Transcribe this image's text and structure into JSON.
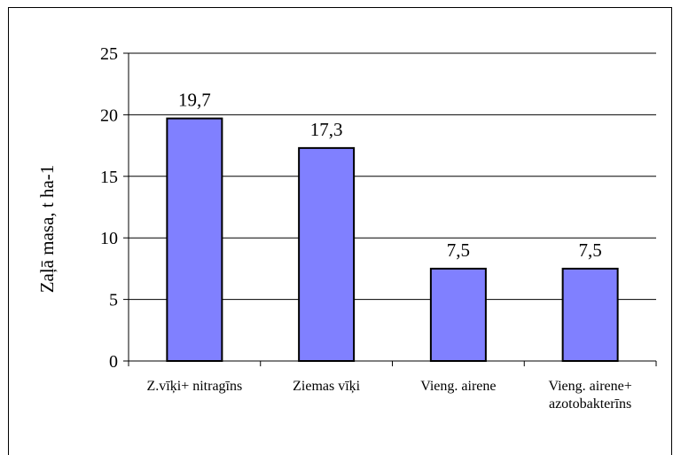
{
  "chart_data": {
    "type": "bar",
    "title": "",
    "xlabel": "",
    "ylabel": "Zaļā masa, t ha-1",
    "ylim": [
      0,
      25
    ],
    "yticks": [
      0,
      5,
      10,
      15,
      20,
      25
    ],
    "categories": [
      [
        "Z.vīķi+ nitragīns"
      ],
      [
        "Ziemas vīķi"
      ],
      [
        "Vieng.  airene"
      ],
      [
        "Vieng. airene+",
        "azotobakterīns"
      ]
    ],
    "values": [
      19.7,
      17.3,
      7.5,
      7.5
    ],
    "data_labels": [
      "19,7",
      "17,3",
      "7,5",
      "7,5"
    ],
    "bar_color": "#8080ff",
    "grid": true
  }
}
